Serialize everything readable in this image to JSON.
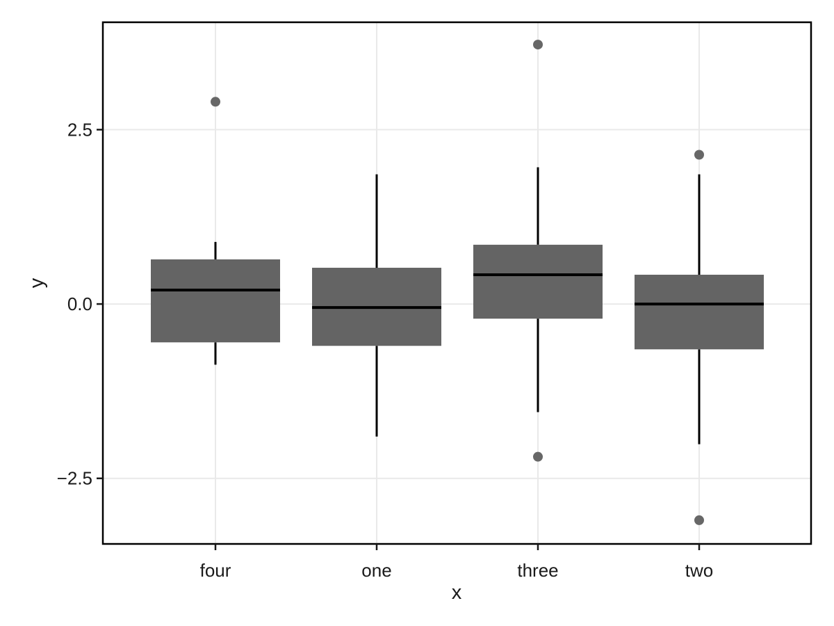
{
  "chart_data": {
    "type": "boxplot",
    "title": "",
    "xlabel": "x",
    "ylabel": "y",
    "categories": [
      "four",
      "one",
      "three",
      "two"
    ],
    "y_ticks": [
      {
        "value": 2.5,
        "label": "2.5"
      },
      {
        "value": 0.0,
        "label": "0.0"
      },
      {
        "value": -2.5,
        "label": "−2.5"
      }
    ],
    "ylim": [
      -3.44,
      4.04
    ],
    "grid": "major-only",
    "legend": "none",
    "boxes": [
      {
        "category": "four",
        "whisker_low": -0.87,
        "q1": -0.55,
        "median": 0.2,
        "q3": 0.64,
        "whisker_high": 0.89,
        "outliers": [
          2.9
        ]
      },
      {
        "category": "one",
        "whisker_low": -1.9,
        "q1": -0.6,
        "median": -0.05,
        "q3": 0.52,
        "whisker_high": 1.86,
        "outliers": []
      },
      {
        "category": "three",
        "whisker_low": -1.55,
        "q1": -0.21,
        "median": 0.42,
        "q3": 0.85,
        "whisker_high": 1.96,
        "outliers": [
          3.72,
          -2.19
        ]
      },
      {
        "category": "two",
        "whisker_low": -2.01,
        "q1": -0.65,
        "median": 0.0,
        "q3": 0.42,
        "whisker_high": 1.86,
        "outliers": [
          2.14,
          -3.1
        ]
      }
    ],
    "colors": {
      "background": "#ffffff",
      "panel_background": "#ffffff",
      "panel_border": "#000000",
      "gridline": "#e9e9e9",
      "box_fill": "#646464",
      "median_line": "#000000",
      "whisker_line": "#000000",
      "outlier_point": "#676767",
      "tick_mark": "#1a1a1a",
      "text": "#1a1a1a"
    }
  }
}
